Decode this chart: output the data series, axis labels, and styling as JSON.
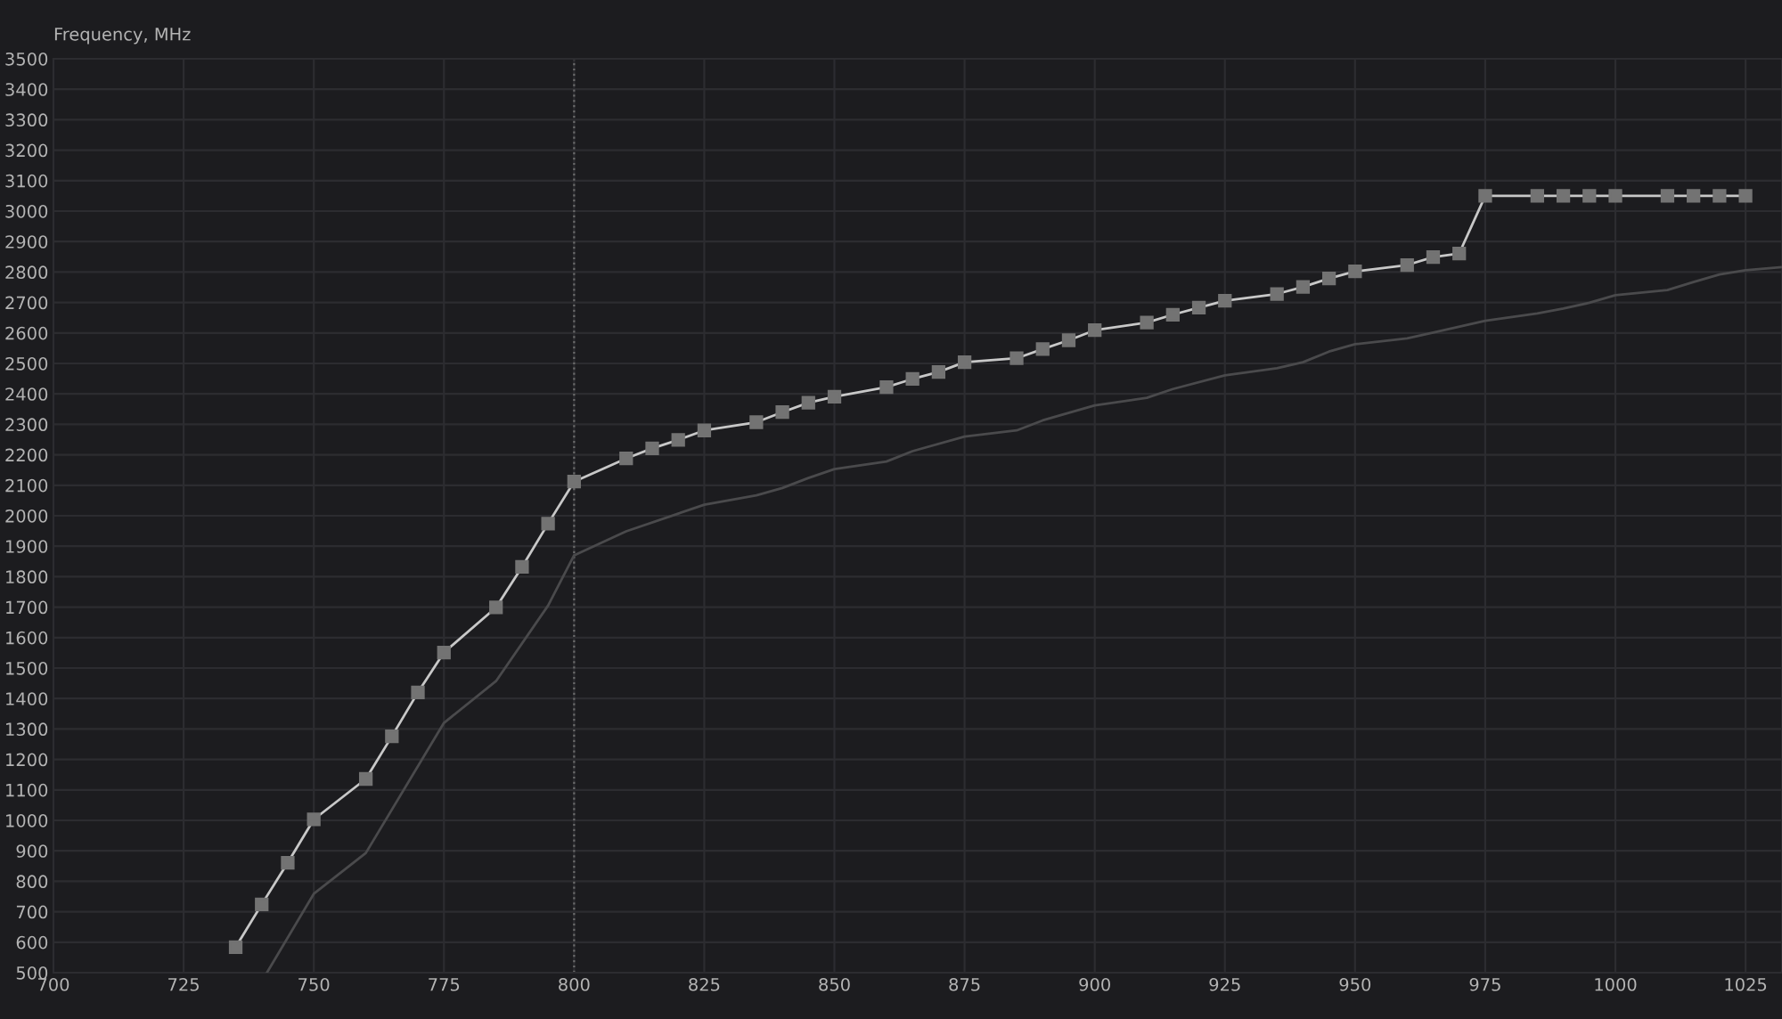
{
  "chart_data": {
    "type": "line",
    "ylabel": "Frequency, MHz",
    "xlim": [
      700,
      1032
    ],
    "ylim": [
      500,
      3500
    ],
    "xticks": [
      700,
      725,
      750,
      775,
      800,
      825,
      850,
      875,
      900,
      925,
      950,
      975,
      1000,
      1025
    ],
    "yticks": [
      500,
      600,
      700,
      800,
      900,
      1000,
      1100,
      1200,
      1300,
      1400,
      1500,
      1600,
      1700,
      1800,
      1900,
      2000,
      2100,
      2200,
      2300,
      2400,
      2500,
      2600,
      2700,
      2800,
      2900,
      3000,
      3100,
      3200,
      3300,
      3400,
      3500
    ],
    "grid": true,
    "line_style": "solid",
    "ref_lines": [
      {
        "axis": "x",
        "value": 800,
        "color": "#6a6a6a",
        "line_style": "dotted"
      }
    ],
    "series": [
      {
        "color": "#4a4a4c",
        "marker": "none",
        "x": [
          741,
          750,
          760,
          775,
          785,
          795,
          800,
          810,
          820,
          825,
          835,
          840,
          845,
          850,
          860,
          865,
          875,
          885,
          890,
          900,
          910,
          915,
          925,
          935,
          940,
          945,
          950,
          960,
          965,
          975,
          985,
          990,
          995,
          1000,
          1010,
          1015,
          1020,
          1025,
          1032
        ],
        "values": [
          500,
          759,
          893,
          1320,
          1457,
          1705,
          1870,
          1949,
          2007,
          2036,
          2067,
          2091,
          2124,
          2153,
          2178,
          2212,
          2260,
          2280,
          2313,
          2362,
          2387,
          2416,
          2461,
          2484,
          2504,
          2539,
          2563,
          2582,
          2601,
          2640,
          2664,
          2680,
          2699,
          2724,
          2741,
          2767,
          2792,
          2806,
          2816
        ]
      },
      {
        "color": "#c8c8c8",
        "marker": "square",
        "x": [
          735,
          740,
          745,
          750,
          760,
          765,
          770,
          775,
          785,
          790,
          795,
          800,
          810,
          815,
          820,
          825,
          835,
          840,
          845,
          850,
          860,
          865,
          870,
          875,
          885,
          890,
          895,
          900,
          910,
          915,
          920,
          925,
          935,
          940,
          945,
          950,
          960,
          965,
          970,
          975,
          985,
          990,
          995,
          1000,
          1010,
          1015,
          1020,
          1025
        ],
        "values": [
          584,
          724,
          861,
          1003,
          1136,
          1276,
          1420,
          1551,
          1699,
          1832,
          1974,
          2112,
          2188,
          2221,
          2249,
          2280,
          2307,
          2340,
          2371,
          2391,
          2422,
          2449,
          2472,
          2504,
          2517,
          2547,
          2576,
          2609,
          2634,
          2660,
          2683,
          2706,
          2728,
          2751,
          2779,
          2802,
          2823,
          2849,
          2861,
          3050,
          3050,
          3050,
          3050,
          3050,
          3050,
          3050,
          3050,
          3050
        ]
      }
    ]
  }
}
